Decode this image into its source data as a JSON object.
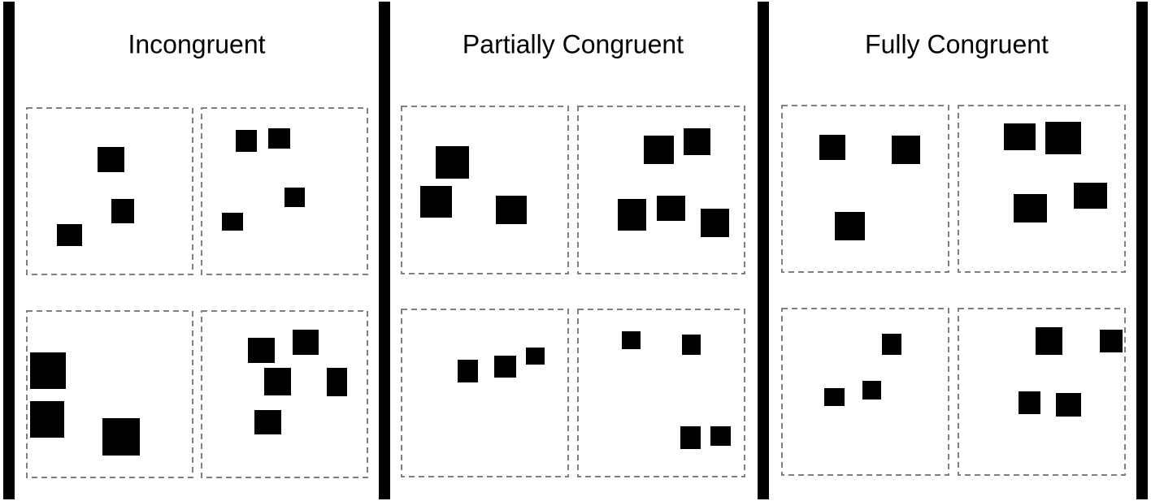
{
  "panels": [
    {
      "title": "Incongruent"
    },
    {
      "title": "Partially Congruent"
    },
    {
      "title": "Fully Congruent"
    }
  ]
}
